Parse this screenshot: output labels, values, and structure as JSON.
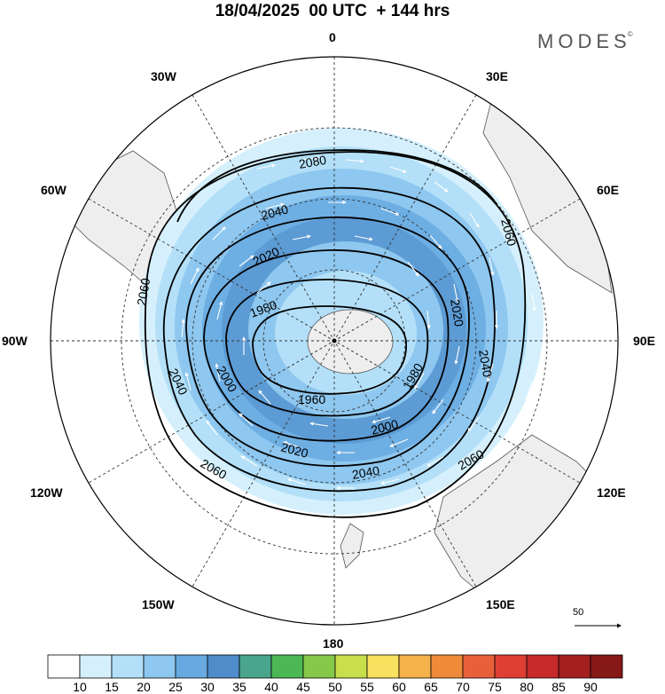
{
  "title": "18/04/2025  00 UTC  + 144 hrs",
  "brand": "MODES",
  "brand_mark": "©",
  "longitude_labels": {
    "n": "0",
    "ne": "30E",
    "e60": "60E",
    "e90": "90E",
    "e120": "120E",
    "e150": "150E",
    "s": "180",
    "w150": "150W",
    "w120": "120W",
    "w90": "90W",
    "w60": "60W",
    "w30": "30W"
  },
  "contour_labels": [
    "2060",
    "2040",
    "2020",
    "1980",
    "1960",
    "2000",
    "2080"
  ],
  "wind_reference": "50",
  "colorbar": {
    "ticks": [
      "10",
      "15",
      "20",
      "25",
      "30",
      "35",
      "40",
      "45",
      "50",
      "55",
      "60",
      "65",
      "70",
      "75",
      "80",
      "85",
      "90"
    ],
    "colors": [
      "#ffffff",
      "#d5f0fc",
      "#b3e0f8",
      "#8ec7ef",
      "#67a9e0",
      "#4f8cc9",
      "#4aa58c",
      "#4cb755",
      "#86c84a",
      "#c8de4b",
      "#f7e15e",
      "#f5b24a",
      "#ef8a3b",
      "#e8603a",
      "#df3f33",
      "#c62a2a",
      "#a4201f",
      "#861818"
    ]
  }
}
